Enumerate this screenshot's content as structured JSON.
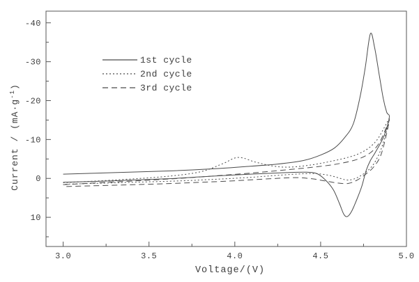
{
  "chart_data": {
    "type": "line",
    "subtype": "cyclic-voltammogram",
    "x_label": "Voltage/(V)",
    "y_label_main": "Current / (mA·g",
    "y_label_sup": "-1",
    "y_label_end": ")",
    "xlim": [
      2.9,
      5.0
    ],
    "ylim": [
      -43,
      17.5
    ],
    "y_axis_inverted_note": "negative current plotted upward",
    "x_tick_values": [
      3.0,
      3.5,
      4.0,
      4.5,
      5.0
    ],
    "x_tick_labels": [
      "3.0",
      "3.5",
      "4.0",
      "4.5",
      "5.0"
    ],
    "x_minor_ticks": [
      3.25,
      3.75,
      4.25,
      4.75
    ],
    "y_tick_values": [
      -40,
      -30,
      -20,
      -10,
      0,
      10
    ],
    "y_tick_labels": [
      "-40",
      "-30",
      "-20",
      "-10",
      "0",
      "10"
    ],
    "y_minor_ticks": [
      -35,
      -25,
      -15,
      -5,
      5,
      15
    ],
    "grid": false,
    "legend_position": "upper-left-inside",
    "axis_color": "#555555",
    "line_color": "#4a4a4a",
    "legend": [
      {
        "label": "1st cycle",
        "style": "solid"
      },
      {
        "label": "2nd cycle",
        "style": "dotted"
      },
      {
        "label": "3rd cycle",
        "style": "dashed"
      }
    ],
    "series": [
      {
        "name": "1st cycle",
        "style": "solid",
        "points": [
          [
            3.0,
            -1.1
          ],
          [
            3.3,
            -1.5
          ],
          [
            3.6,
            -1.9
          ],
          [
            3.85,
            -2.4
          ],
          [
            4.05,
            -3.0
          ],
          [
            4.25,
            -3.7
          ],
          [
            4.4,
            -4.6
          ],
          [
            4.5,
            -6.0
          ],
          [
            4.58,
            -7.8
          ],
          [
            4.64,
            -10.5
          ],
          [
            4.69,
            -14.0
          ],
          [
            4.73,
            -21.0
          ],
          [
            4.76,
            -28.5
          ],
          [
            4.79,
            -37.2
          ],
          [
            4.815,
            -33.5
          ],
          [
            4.84,
            -27.0
          ],
          [
            4.865,
            -20.5
          ],
          [
            4.885,
            -17.0
          ],
          [
            4.9,
            -15.7
          ],
          [
            4.87,
            -11.0
          ],
          [
            4.82,
            -6.8
          ],
          [
            4.79,
            -4.6
          ],
          [
            4.765,
            -2.0
          ],
          [
            4.74,
            2.0
          ],
          [
            4.71,
            5.5
          ],
          [
            4.68,
            8.5
          ],
          [
            4.655,
            9.8
          ],
          [
            4.635,
            9.2
          ],
          [
            4.61,
            6.5
          ],
          [
            4.575,
            3.0
          ],
          [
            4.53,
            0.5
          ],
          [
            4.48,
            -1.2
          ],
          [
            4.42,
            -1.6
          ],
          [
            4.3,
            -1.5
          ],
          [
            4.15,
            -1.2
          ],
          [
            4.0,
            -0.9
          ],
          [
            3.8,
            -0.4
          ],
          [
            3.6,
            0.1
          ],
          [
            3.3,
            0.6
          ],
          [
            3.0,
            1.0
          ]
        ]
      },
      {
        "name": "2nd cycle",
        "style": "dotted",
        "points": [
          [
            3.0,
            1.1
          ],
          [
            3.3,
            0.4
          ],
          [
            3.6,
            -0.5
          ],
          [
            3.8,
            -1.7
          ],
          [
            3.93,
            -3.8
          ],
          [
            4.02,
            -5.4
          ],
          [
            4.12,
            -4.2
          ],
          [
            4.22,
            -3.2
          ],
          [
            4.32,
            -2.9
          ],
          [
            4.45,
            -3.5
          ],
          [
            4.55,
            -4.3
          ],
          [
            4.65,
            -5.3
          ],
          [
            4.72,
            -6.3
          ],
          [
            4.78,
            -7.8
          ],
          [
            4.83,
            -10.0
          ],
          [
            4.87,
            -13.0
          ],
          [
            4.9,
            -15.2
          ],
          [
            4.86,
            -8.5
          ],
          [
            4.82,
            -4.5
          ],
          [
            4.78,
            -2.2
          ],
          [
            4.73,
            -0.6
          ],
          [
            4.69,
            0.2
          ],
          [
            4.65,
            0.4
          ],
          [
            4.6,
            -0.2
          ],
          [
            4.55,
            -0.8
          ],
          [
            4.48,
            -1.2
          ],
          [
            4.4,
            -1.2
          ],
          [
            4.25,
            -0.8
          ],
          [
            4.1,
            -0.3
          ],
          [
            3.9,
            0.2
          ],
          [
            3.7,
            0.6
          ],
          [
            3.4,
            1.0
          ],
          [
            3.0,
            1.5
          ]
        ]
      },
      {
        "name": "3rd cycle",
        "style": "dashed",
        "points": [
          [
            3.0,
            1.6
          ],
          [
            3.3,
            0.9
          ],
          [
            3.6,
            0.2
          ],
          [
            3.9,
            -0.7
          ],
          [
            4.1,
            -1.4
          ],
          [
            4.3,
            -2.2
          ],
          [
            4.5,
            -3.1
          ],
          [
            4.62,
            -3.9
          ],
          [
            4.72,
            -5.0
          ],
          [
            4.79,
            -6.6
          ],
          [
            4.84,
            -9.0
          ],
          [
            4.88,
            -12.8
          ],
          [
            4.9,
            -14.8
          ],
          [
            4.855,
            -6.5
          ],
          [
            4.81,
            -3.0
          ],
          [
            4.76,
            -1.0
          ],
          [
            4.71,
            0.5
          ],
          [
            4.66,
            1.3
          ],
          [
            4.6,
            1.2
          ],
          [
            4.52,
            0.6
          ],
          [
            4.45,
            0.1
          ],
          [
            4.35,
            -0.2
          ],
          [
            4.2,
            0.1
          ],
          [
            4.0,
            0.6
          ],
          [
            3.8,
            1.0
          ],
          [
            3.5,
            1.5
          ],
          [
            3.0,
            2.1
          ]
        ]
      }
    ]
  }
}
